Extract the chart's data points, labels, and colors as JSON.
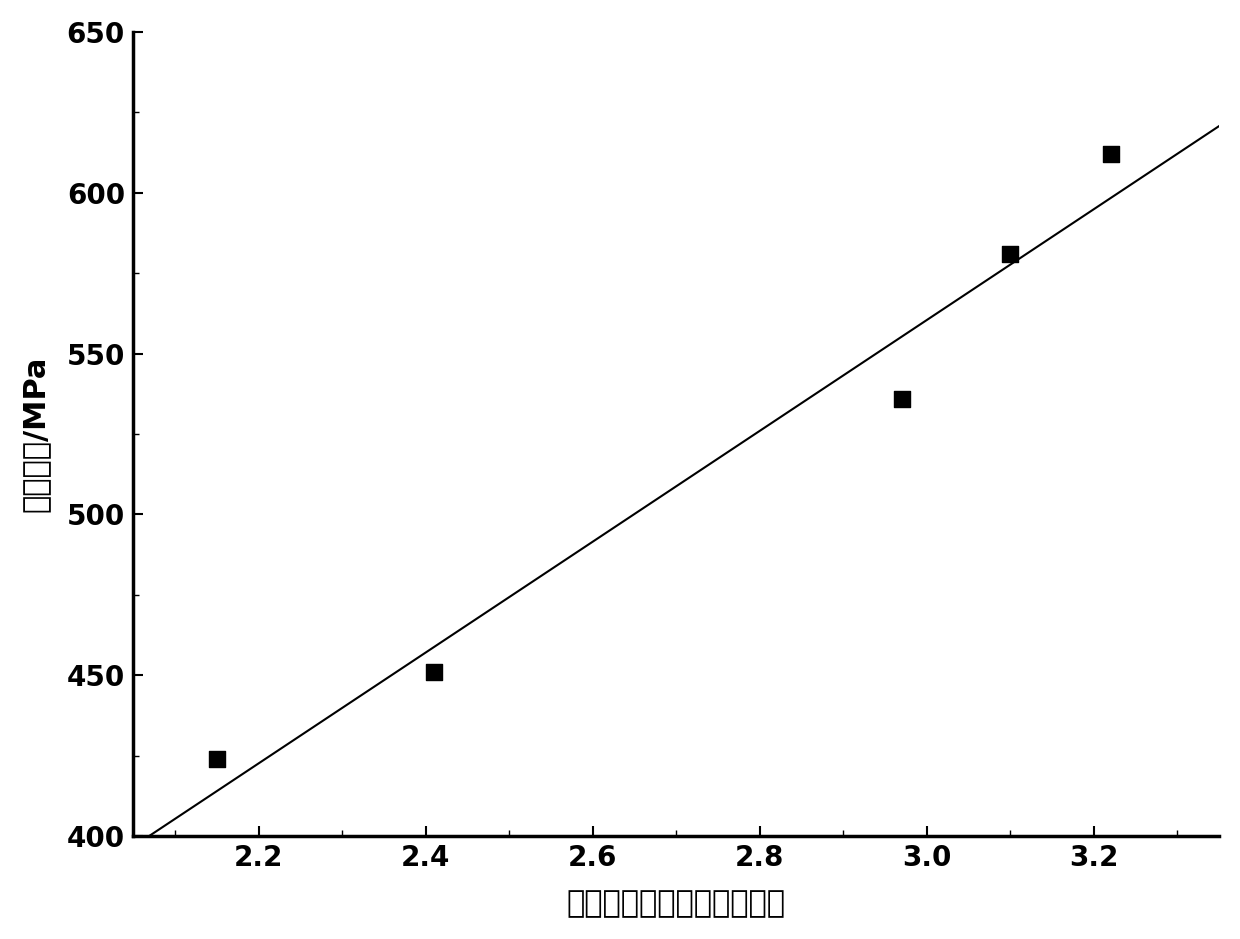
{
  "x_data": [
    2.15,
    2.41,
    2.97,
    3.1,
    3.22
  ],
  "y_data": [
    424,
    451,
    536,
    581,
    612
  ],
  "line_x_start": 2.05,
  "line_x_end": 3.35,
  "xlabel": "离子谱线与原子谱线强度比",
  "ylabel": "抗拉强度/MPa",
  "xlim": [
    2.05,
    3.35
  ],
  "ylim": [
    400,
    650
  ],
  "xticks": [
    2.2,
    2.4,
    2.6,
    2.8,
    3.0,
    3.2
  ],
  "yticks": [
    400,
    450,
    500,
    550,
    600,
    650
  ],
  "marker_color": "#000000",
  "line_color": "#000000",
  "bg_color": "#ffffff",
  "marker_size": 11,
  "line_width": 1.5,
  "xlabel_fontsize": 22,
  "ylabel_fontsize": 22,
  "tick_fontsize": 20,
  "spine_linewidth": 2.5
}
